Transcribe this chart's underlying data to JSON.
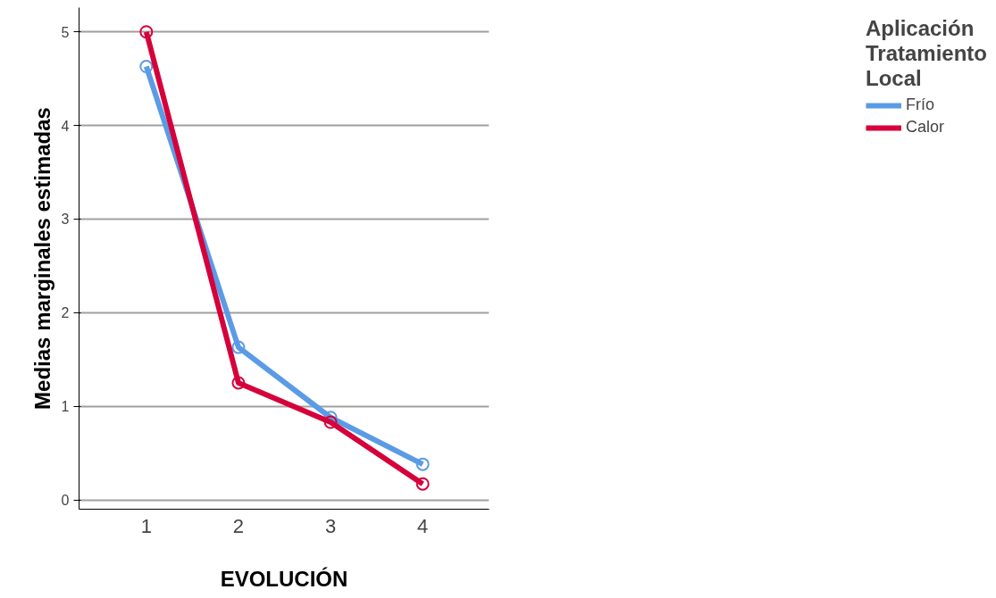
{
  "chart_data": {
    "type": "line",
    "xlabel": "EVOLUCIÓN",
    "ylabel": "Medias marginales estimadas",
    "legend_title": "Aplicación\nTratamiento\nLocal",
    "categories": [
      "1",
      "2",
      "3",
      "4"
    ],
    "series": [
      {
        "name": "Frío",
        "color": "#5b9be6",
        "values": [
          4.63,
          1.63,
          0.88,
          0.38
        ]
      },
      {
        "name": "Calor",
        "color": "#d6003a",
        "values": [
          5.0,
          1.25,
          0.83,
          0.17
        ]
      }
    ],
    "ylim": [
      -0.1,
      5.26
    ],
    "yticks": [
      0,
      1,
      2,
      3,
      4,
      5
    ],
    "grid": "y",
    "legend": "right",
    "marker": "circle",
    "line_style": "solid"
  }
}
